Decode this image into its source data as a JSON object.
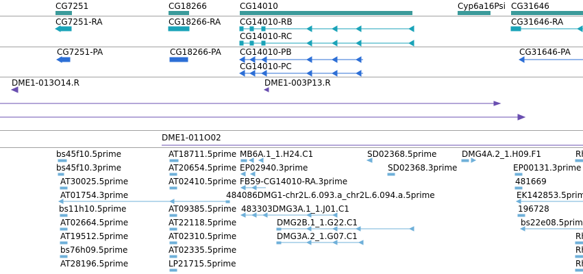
{
  "tracks": {
    "genes": {
      "labels": [
        "CG7251",
        "CG18266",
        "CG14010",
        "Cyp6a16Psi",
        "CG31646"
      ],
      "color": "#3b9a9a"
    },
    "transcripts": {
      "labels": [
        "CG7251-RA",
        "CG18266-RA",
        "CG14010-RB",
        "CG14010-RC",
        "CG31646-RA"
      ],
      "color": "#1aa3b8"
    },
    "proteins": {
      "labels": [
        "CG7251-PA",
        "CG18266-PA",
        "CG14010-PB",
        "CG14010-PC",
        "CG31646-PA"
      ],
      "color": "#2d6fd6"
    },
    "clones": {
      "labels": [
        "DME1-013O14.R",
        "DME1-003P13.R",
        "DME1-011O02"
      ],
      "color": "#6a4fb0"
    },
    "ests": {
      "labels": [
        "bs45f10.5prime",
        "AT18711.5prime",
        "MB6A.1_1.H24.C1",
        "SD02368.5prime",
        "DMG4A.2_1.H09.F1",
        "Rh",
        "bs45f10.3prime",
        "AT20654.5prime",
        "EP02940.3prime",
        "SD02368.3prime",
        "EP00131.3prime",
        "AT30025.5prime",
        "AT02410.5prime",
        "FB59-CG14010-RA.3prime",
        "481669",
        "AT01754.3prime",
        "484086DMG1-chr2L.6.093.a_chr2L.6.094.a.5prime",
        "EK142853.5prime",
        "bs11h10.5prime",
        "AT09385.5prime",
        "483303DMG3A.1_1.J01.C1",
        "196728",
        "AT02664.5prime",
        "AT22118.5prime",
        "DMG2B.1_1.G22.C1",
        "bs22e08.5prime",
        "AT19512.5prime",
        "AT02310.5prime",
        "DMG3A.2_1.G07.C1",
        "Rh",
        "bs76h09.5prime",
        "AT02335.5prime",
        "Rh",
        "AT28196.5prime",
        "LP21715.5prime",
        "Rh"
      ],
      "color": "#6fb0d9"
    }
  }
}
